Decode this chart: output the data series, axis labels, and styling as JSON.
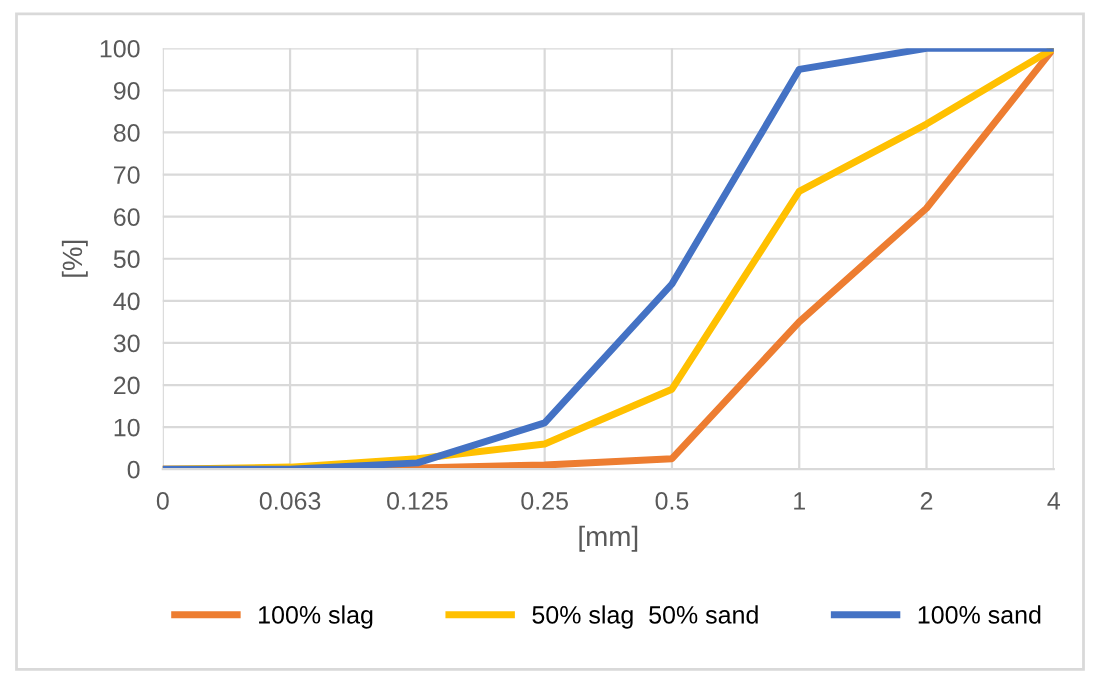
{
  "chart_data": {
    "type": "line",
    "xlabel": "[mm]",
    "ylabel": "[%]",
    "categories": [
      "0",
      "0.063",
      "0.125",
      "0.25",
      "0.5",
      "1",
      "2",
      "4"
    ],
    "series": [
      {
        "name": "100% slag",
        "color": "#ed7d31",
        "values": [
          0,
          0,
          0.3,
          1,
          2.5,
          35,
          62,
          100
        ]
      },
      {
        "name": "50% slag  50% sand",
        "color": "#ffc000",
        "values": [
          0,
          0.5,
          2.5,
          6,
          19,
          66,
          82,
          100
        ]
      },
      {
        "name": "100% sand",
        "color": "#4472c4",
        "values": [
          0,
          0,
          1.5,
          11,
          44,
          95,
          100,
          100
        ]
      }
    ],
    "ylim": [
      0,
      100
    ],
    "yticks": [
      0,
      10,
      20,
      30,
      40,
      50,
      60,
      70,
      80,
      90,
      100
    ],
    "grid": true,
    "legend": "bottom",
    "marker": "none",
    "line_style": "solid"
  }
}
